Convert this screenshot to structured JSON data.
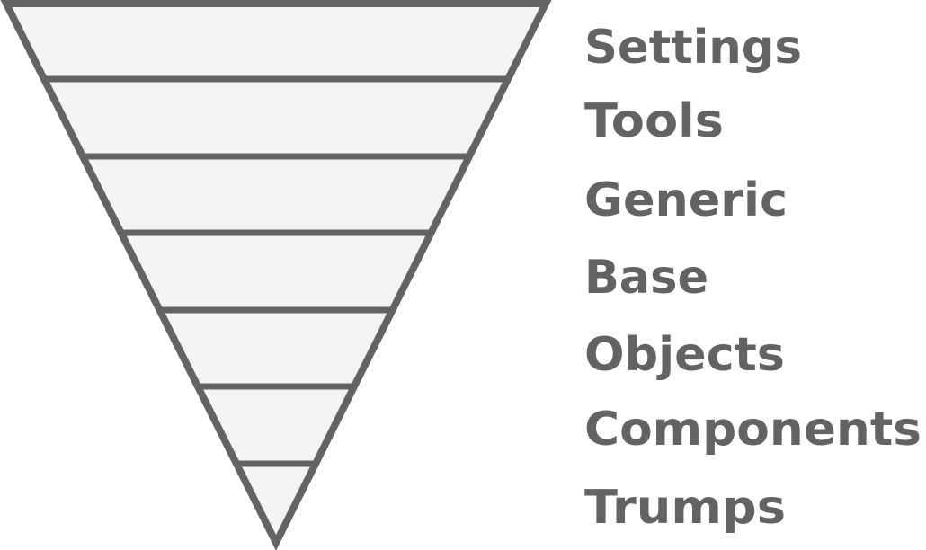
{
  "diagram": {
    "layers": [
      {
        "label": "Settings"
      },
      {
        "label": "Tools"
      },
      {
        "label": "Generic"
      },
      {
        "label": "Base"
      },
      {
        "label": "Objects"
      },
      {
        "label": "Components"
      },
      {
        "label": "Trumps"
      }
    ],
    "colors": {
      "stroke": "#636363",
      "fill": "#f4f4f4",
      "text": "#636363"
    }
  }
}
